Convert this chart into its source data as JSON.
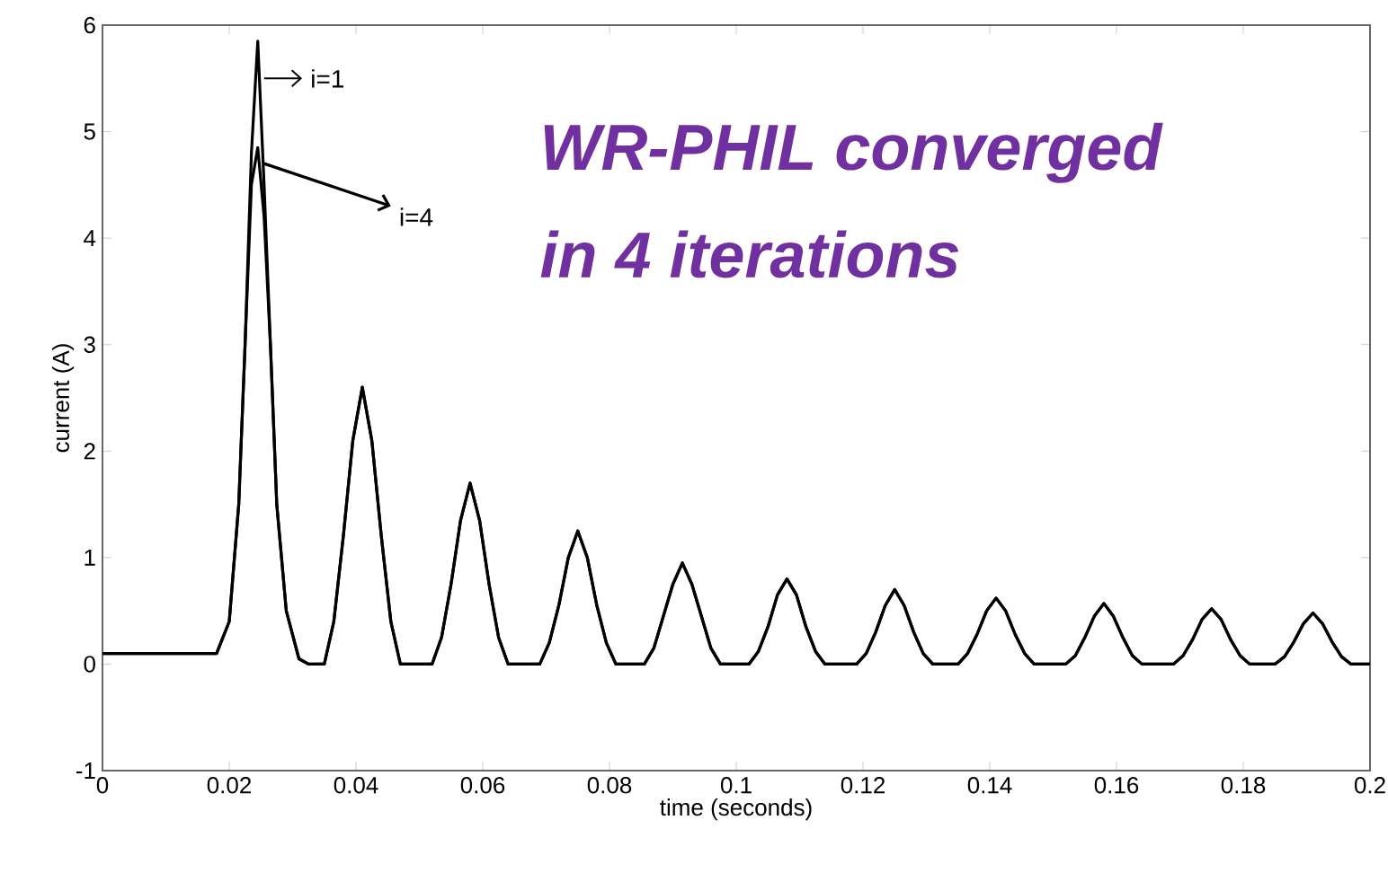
{
  "chart_data": {
    "type": "line",
    "xlabel": "time (seconds)",
    "ylabel": "current (A)",
    "annotations": [
      "WR-PHIL converged",
      "in 4 iterations"
    ],
    "x": [
      0,
      0.018,
      0.02,
      0.0215,
      0.0225,
      0.0235,
      0.0245,
      0.0255,
      0.0265,
      0.0275,
      0.029,
      0.031,
      0.0325,
      0.035,
      0.0365,
      0.038,
      0.0395,
      0.041,
      0.0425,
      0.044,
      0.0455,
      0.047,
      0.052,
      0.0535,
      0.055,
      0.0565,
      0.058,
      0.0595,
      0.061,
      0.0625,
      0.064,
      0.069,
      0.0705,
      0.072,
      0.0735,
      0.075,
      0.0765,
      0.078,
      0.0795,
      0.081,
      0.0855,
      0.087,
      0.0885,
      0.09,
      0.0915,
      0.093,
      0.0945,
      0.096,
      0.0975,
      0.102,
      0.1035,
      0.105,
      0.1065,
      0.108,
      0.1095,
      0.111,
      0.1125,
      0.114,
      0.119,
      0.1205,
      0.122,
      0.1235,
      0.125,
      0.1265,
      0.128,
      0.1295,
      0.131,
      0.135,
      0.1365,
      0.138,
      0.1395,
      0.141,
      0.1425,
      0.144,
      0.1455,
      0.147,
      0.152,
      0.1535,
      0.155,
      0.1565,
      0.158,
      0.1595,
      0.161,
      0.1625,
      0.164,
      0.169,
      0.1705,
      0.172,
      0.1735,
      0.175,
      0.1765,
      0.178,
      0.1795,
      0.181,
      0.185,
      0.1865,
      0.188,
      0.1895,
      0.191,
      0.1925,
      0.194,
      0.1955,
      0.197,
      0.2
    ],
    "series": [
      {
        "name": "i=1",
        "color": "#000000",
        "values": [
          0.1,
          0.1,
          0.4,
          1.5,
          3.0,
          4.8,
          5.85,
          4.5,
          3.0,
          1.5,
          0.5,
          0.05,
          0,
          0,
          0.4,
          1.2,
          2.1,
          2.6,
          2.1,
          1.2,
          0.4,
          0,
          0,
          0.25,
          0.75,
          1.35,
          1.7,
          1.35,
          0.75,
          0.25,
          0,
          0,
          0.2,
          0.55,
          1.0,
          1.25,
          1.0,
          0.55,
          0.2,
          0,
          0,
          0.15,
          0.45,
          0.75,
          0.95,
          0.75,
          0.45,
          0.15,
          0,
          0,
          0.12,
          0.35,
          0.65,
          0.8,
          0.65,
          0.35,
          0.12,
          0,
          0,
          0.1,
          0.3,
          0.55,
          0.7,
          0.55,
          0.3,
          0.1,
          0,
          0,
          0.1,
          0.28,
          0.5,
          0.62,
          0.5,
          0.28,
          0.1,
          0,
          0,
          0.08,
          0.25,
          0.45,
          0.57,
          0.45,
          0.25,
          0.08,
          0,
          0,
          0.08,
          0.23,
          0.42,
          0.52,
          0.42,
          0.23,
          0.08,
          0,
          0,
          0.07,
          0.21,
          0.38,
          0.48,
          0.38,
          0.21,
          0.07,
          0,
          0
        ]
      },
      {
        "name": "i=4",
        "color": "#000000",
        "values": [
          0.1,
          0.1,
          0.4,
          1.5,
          3.0,
          4.5,
          4.85,
          4.2,
          3.0,
          1.5,
          0.5,
          0.05,
          0,
          0,
          0.4,
          1.2,
          2.1,
          2.6,
          2.1,
          1.2,
          0.4,
          0,
          0,
          0.25,
          0.75,
          1.35,
          1.7,
          1.35,
          0.75,
          0.25,
          0,
          0,
          0.2,
          0.55,
          1.0,
          1.25,
          1.0,
          0.55,
          0.2,
          0,
          0,
          0.15,
          0.45,
          0.75,
          0.95,
          0.75,
          0.45,
          0.15,
          0,
          0,
          0.12,
          0.35,
          0.65,
          0.8,
          0.65,
          0.35,
          0.12,
          0,
          0,
          0.1,
          0.3,
          0.55,
          0.7,
          0.55,
          0.3,
          0.1,
          0,
          0,
          0.1,
          0.28,
          0.5,
          0.62,
          0.5,
          0.28,
          0.1,
          0,
          0,
          0.08,
          0.25,
          0.45,
          0.57,
          0.45,
          0.25,
          0.08,
          0,
          0,
          0.08,
          0.23,
          0.42,
          0.52,
          0.42,
          0.23,
          0.08,
          0,
          0,
          0.07,
          0.21,
          0.38,
          0.48,
          0.38,
          0.21,
          0.07,
          0,
          0
        ]
      }
    ],
    "xlim": [
      0,
      0.2
    ],
    "ylim": [
      -1,
      6
    ],
    "xticks": [
      0,
      0.02,
      0.04,
      0.06,
      0.08,
      0.1,
      0.12,
      0.14,
      0.16,
      0.18,
      0.2
    ],
    "yticks": [
      -1,
      0,
      1,
      2,
      3,
      4,
      5,
      6
    ],
    "grid": false,
    "legend": "top left",
    "marker": "none",
    "line_style": "solid"
  }
}
